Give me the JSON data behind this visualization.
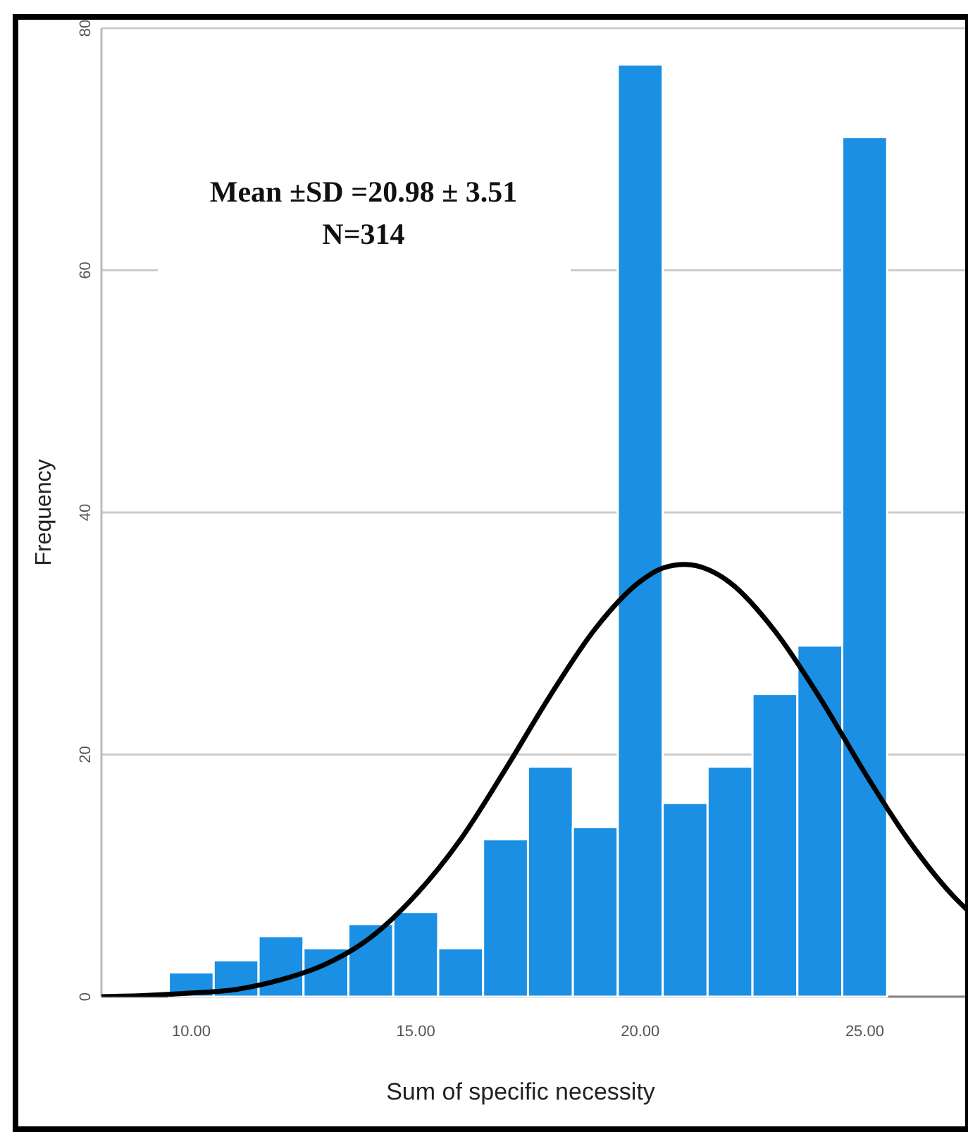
{
  "chart_data": {
    "type": "histogram",
    "xlabel": "Sum of specific necessity",
    "ylabel": "Frequency",
    "bins": [
      9.5,
      10.5,
      11.5,
      12.5,
      13.5,
      14.5,
      15.5,
      16.5,
      17.5,
      18.5,
      19.5,
      20.5,
      21.5,
      22.5,
      23.5,
      24.5,
      25.5
    ],
    "values": [
      2,
      3,
      5,
      4,
      6,
      7,
      4,
      13,
      19,
      14,
      77,
      16,
      19,
      25,
      29,
      71
    ],
    "color": "#1a8fe3",
    "series": [
      {
        "type": "line",
        "color": "#000000",
        "x": [
          8,
          9,
          10,
          11,
          12,
          13,
          14,
          15,
          16,
          17,
          18,
          19,
          20,
          20.5,
          21,
          21.5,
          22,
          23,
          24,
          25,
          26,
          27,
          27.3
        ],
        "values": [
          0,
          0.1,
          0.3,
          0.6,
          1.4,
          2.7,
          4.9,
          8.4,
          13,
          18.8,
          24.9,
          30.4,
          34.3,
          35.4,
          35.7,
          35.3,
          34.2,
          30.2,
          24.7,
          18.5,
          12.8,
          8.2,
          7.1
        ]
      }
    ],
    "xlim": [
      8,
      27.3
    ],
    "xticks": [
      {
        "value": 10,
        "label": "10.00"
      },
      {
        "value": 15,
        "label": "15.00"
      },
      {
        "value": 20,
        "label": "20.00"
      },
      {
        "value": 25,
        "label": "25.00"
      }
    ],
    "ylim": [
      0,
      80
    ],
    "yticks": [
      0,
      20,
      40,
      60,
      80
    ],
    "grid": "y",
    "annotations": [
      "Mean ±SD =20.98 ± 3.51",
      "N=314"
    ]
  }
}
